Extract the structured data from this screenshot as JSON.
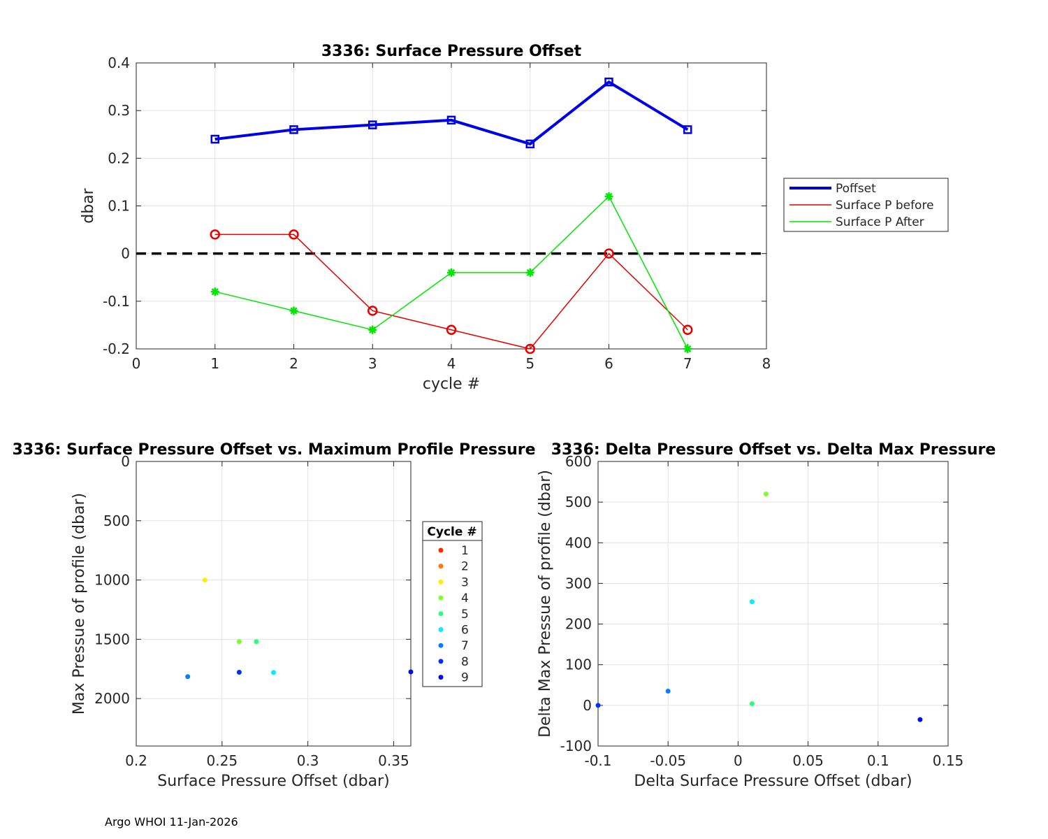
{
  "footer": "Argo WHOI 11-Jan-2026",
  "chart_data": [
    {
      "type": "line",
      "title": "3336: Surface Pressure Offset",
      "xlabel": "cycle #",
      "ylabel": "dbar",
      "xlim": [
        0,
        8
      ],
      "ylim": [
        -0.2,
        0.4
      ],
      "xticks": [
        "0",
        "1",
        "2",
        "3",
        "4",
        "5",
        "6",
        "7",
        "8"
      ],
      "yticks": [
        "-0.2",
        "-0.1",
        "0",
        "0.1",
        "0.2",
        "0.3",
        "0.4"
      ],
      "grid": true,
      "legend": "right, outside",
      "zero_line": true,
      "x": [
        1,
        2,
        3,
        4,
        5,
        6,
        7
      ],
      "series": [
        {
          "name": "Poffset",
          "color": "#0000e6",
          "marker": "square",
          "values": [
            0.24,
            0.26,
            0.27,
            0.28,
            0.23,
            0.36,
            0.26
          ]
        },
        {
          "name": "Surface P before",
          "color": "#e60000",
          "marker": "circle",
          "values": [
            0.04,
            0.04,
            -0.12,
            -0.16,
            -0.2,
            0.0,
            -0.16
          ]
        },
        {
          "name": "Surface P After",
          "color": "#00e600",
          "marker": "star",
          "values": [
            -0.08,
            -0.12,
            -0.16,
            -0.04,
            -0.04,
            0.12,
            -0.2
          ]
        }
      ]
    },
    {
      "type": "scatter",
      "title": "3336: Surface Pressure Offset vs. Maximum Profile Pressure",
      "xlabel": "Surface Pressure Offset (dbar)",
      "ylabel": "Max Pressue of profile (dbar)",
      "xlim": [
        0.2,
        0.36
      ],
      "ylim": [
        0,
        2400
      ],
      "y_reversed": true,
      "xticks": [
        "0.2",
        "0.25",
        "0.3",
        "0.35"
      ],
      "yticks": [
        "0",
        "500",
        "1000",
        "1500",
        "2000"
      ],
      "grid": true,
      "legend_title": "Cycle #",
      "legend": "right, outside",
      "legend_entries": [
        {
          "label": "1",
          "color": "#ff2a00"
        },
        {
          "label": "2",
          "color": "#ff7a00"
        },
        {
          "label": "3",
          "color": "#ffee00"
        },
        {
          "label": "4",
          "color": "#7dff2a"
        },
        {
          "label": "5",
          "color": "#2aff7d"
        },
        {
          "label": "6",
          "color": "#00eeff"
        },
        {
          "label": "7",
          "color": "#0080ff"
        },
        {
          "label": "8",
          "color": "#0030ff"
        },
        {
          "label": "9",
          "color": "#0010e0"
        }
      ],
      "points": [
        {
          "x": 0.24,
          "y": 1000,
          "color": "#ffee00"
        },
        {
          "x": 0.26,
          "y": 1520,
          "color": "#7dff2a"
        },
        {
          "x": 0.27,
          "y": 1520,
          "color": "#2aff7d"
        },
        {
          "x": 0.28,
          "y": 1780,
          "color": "#00eeff"
        },
        {
          "x": 0.23,
          "y": 1815,
          "color": "#0080ff"
        },
        {
          "x": 0.26,
          "y": 1778,
          "color": "#0030ff"
        },
        {
          "x": 0.36,
          "y": 1775,
          "color": "#0010e0"
        }
      ]
    },
    {
      "type": "scatter",
      "title": "3336: Delta Pressure Offset vs. Delta Max Pressure",
      "xlabel": "Delta Surface Pressure Offset (dbar)",
      "ylabel": "Delta Max Pressue of profile (dbar)",
      "xlim": [
        -0.1,
        0.15
      ],
      "ylim": [
        -100,
        600
      ],
      "xticks": [
        "-0.1",
        "-0.05",
        "0",
        "0.05",
        "0.1",
        "0.15"
      ],
      "yticks": [
        "-100",
        "0",
        "100",
        "200",
        "300",
        "400",
        "500",
        "600"
      ],
      "grid": true,
      "points": [
        {
          "x": 0.02,
          "y": 520,
          "color": "#7dff2a"
        },
        {
          "x": 0.01,
          "y": 255,
          "color": "#00eeff"
        },
        {
          "x": 0.01,
          "y": 4,
          "color": "#2aff7d"
        },
        {
          "x": -0.05,
          "y": 35,
          "color": "#0080ff"
        },
        {
          "x": -0.1,
          "y": 0,
          "color": "#0030ff"
        },
        {
          "x": 0.13,
          "y": -35,
          "color": "#0010e0"
        }
      ]
    }
  ]
}
